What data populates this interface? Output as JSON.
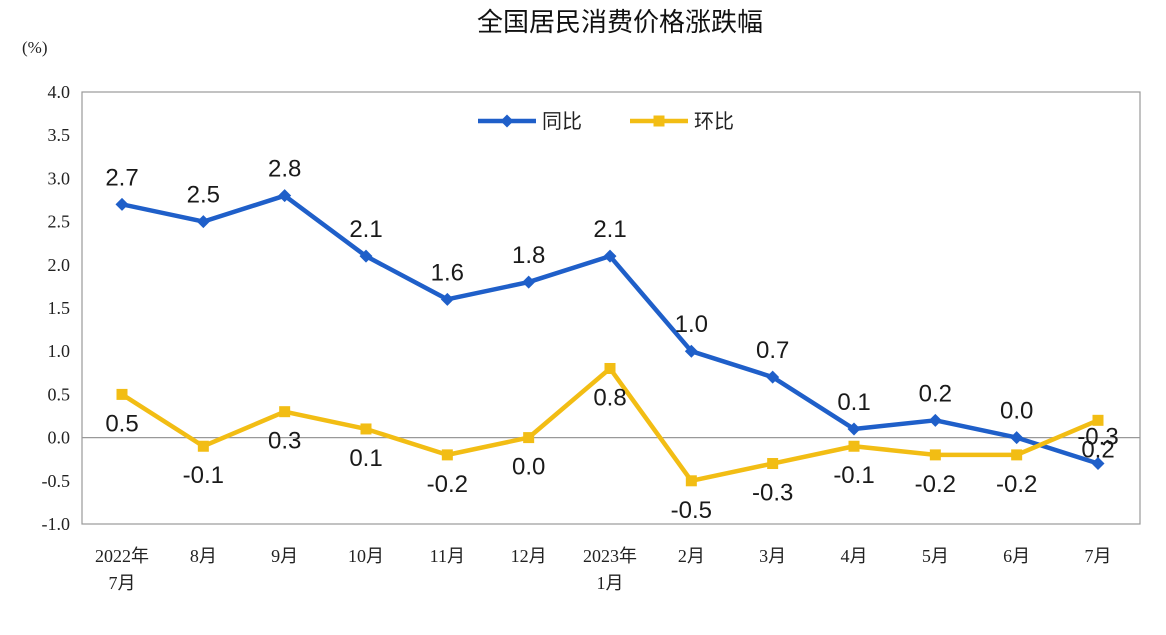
{
  "chart_data": {
    "type": "line",
    "title": "全国居民消费价格涨跌幅",
    "ylabel": "(%)",
    "xlabel": "",
    "ylim": [
      -1.0,
      4.0
    ],
    "ytick_values": [
      4.0,
      3.5,
      3.0,
      2.5,
      2.0,
      1.5,
      1.0,
      0.5,
      0.0,
      -0.5,
      -1.0
    ],
    "ytick_labels": [
      "4.0",
      "3.5",
      "3.0",
      "2.5",
      "2.0",
      "1.5",
      "1.0",
      "0.5",
      "0.0",
      "-0.5",
      "-1.0"
    ],
    "categories": [
      [
        "2022年",
        "7月"
      ],
      [
        "8月"
      ],
      [
        "9月"
      ],
      [
        "10月"
      ],
      [
        "11月"
      ],
      [
        "12月"
      ],
      [
        "2023年",
        "1月"
      ],
      [
        "2月"
      ],
      [
        "3月"
      ],
      [
        "4月"
      ],
      [
        "5月"
      ],
      [
        "6月"
      ],
      [
        "7月"
      ]
    ],
    "legend_position": "top-center",
    "series": [
      {
        "name": "同比",
        "color": "#1f5fc9",
        "marker": "diamond",
        "label_side": "above",
        "values": [
          2.7,
          2.5,
          2.8,
          2.1,
          1.6,
          1.8,
          2.1,
          1.0,
          0.7,
          0.1,
          0.2,
          0.0,
          -0.3
        ],
        "labels": [
          "2.7",
          "2.5",
          "2.8",
          "2.1",
          "1.6",
          "1.8",
          "2.1",
          "1.0",
          "0.7",
          "0.1",
          "0.2",
          "0.0",
          "-0.3"
        ]
      },
      {
        "name": "环比",
        "color": "#f2bd14",
        "marker": "square",
        "label_side": "below",
        "values": [
          0.5,
          -0.1,
          0.3,
          0.1,
          -0.2,
          0.0,
          0.8,
          -0.5,
          -0.3,
          -0.1,
          -0.2,
          -0.2,
          0.2
        ],
        "labels": [
          "0.5",
          "-0.1",
          "0.3",
          "0.1",
          "-0.2",
          "0.0",
          "0.8",
          "-0.5",
          "-0.3",
          "-0.1",
          "-0.2",
          "-0.2",
          "0.2"
        ]
      }
    ]
  }
}
